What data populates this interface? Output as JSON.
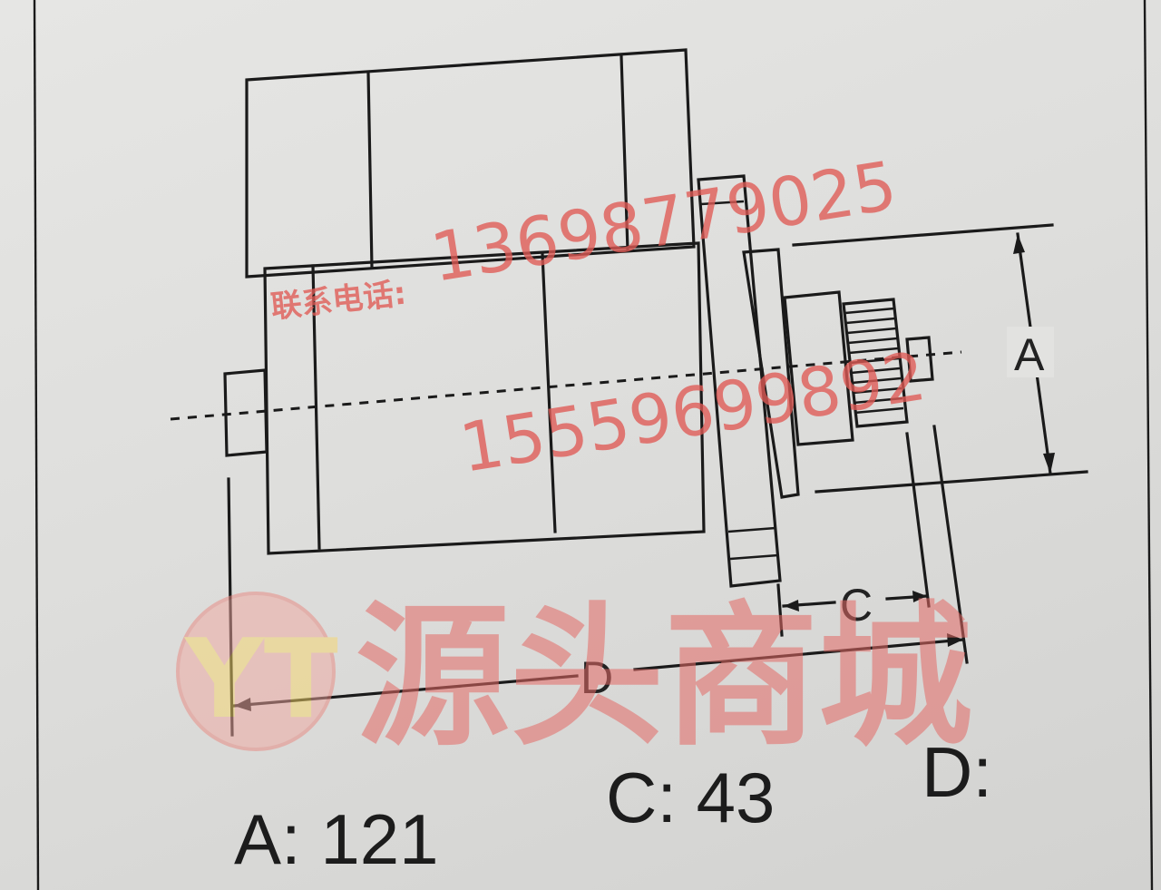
{
  "diagram": {
    "dimension_labels": {
      "a": "A",
      "c": "C",
      "d": "D"
    },
    "values": {
      "a": "A: 121",
      "c": "C: 43",
      "d": "D:"
    }
  },
  "watermark": {
    "phone1": "13698779025",
    "contact_label": "联系电话:",
    "phone2": "15559699892",
    "brand_text": "源头商城",
    "logo_text": "YT"
  },
  "colors": {
    "ink": "#1a1a1a",
    "paper": "#e2e2e0",
    "watermark_red": "#e05a55"
  }
}
